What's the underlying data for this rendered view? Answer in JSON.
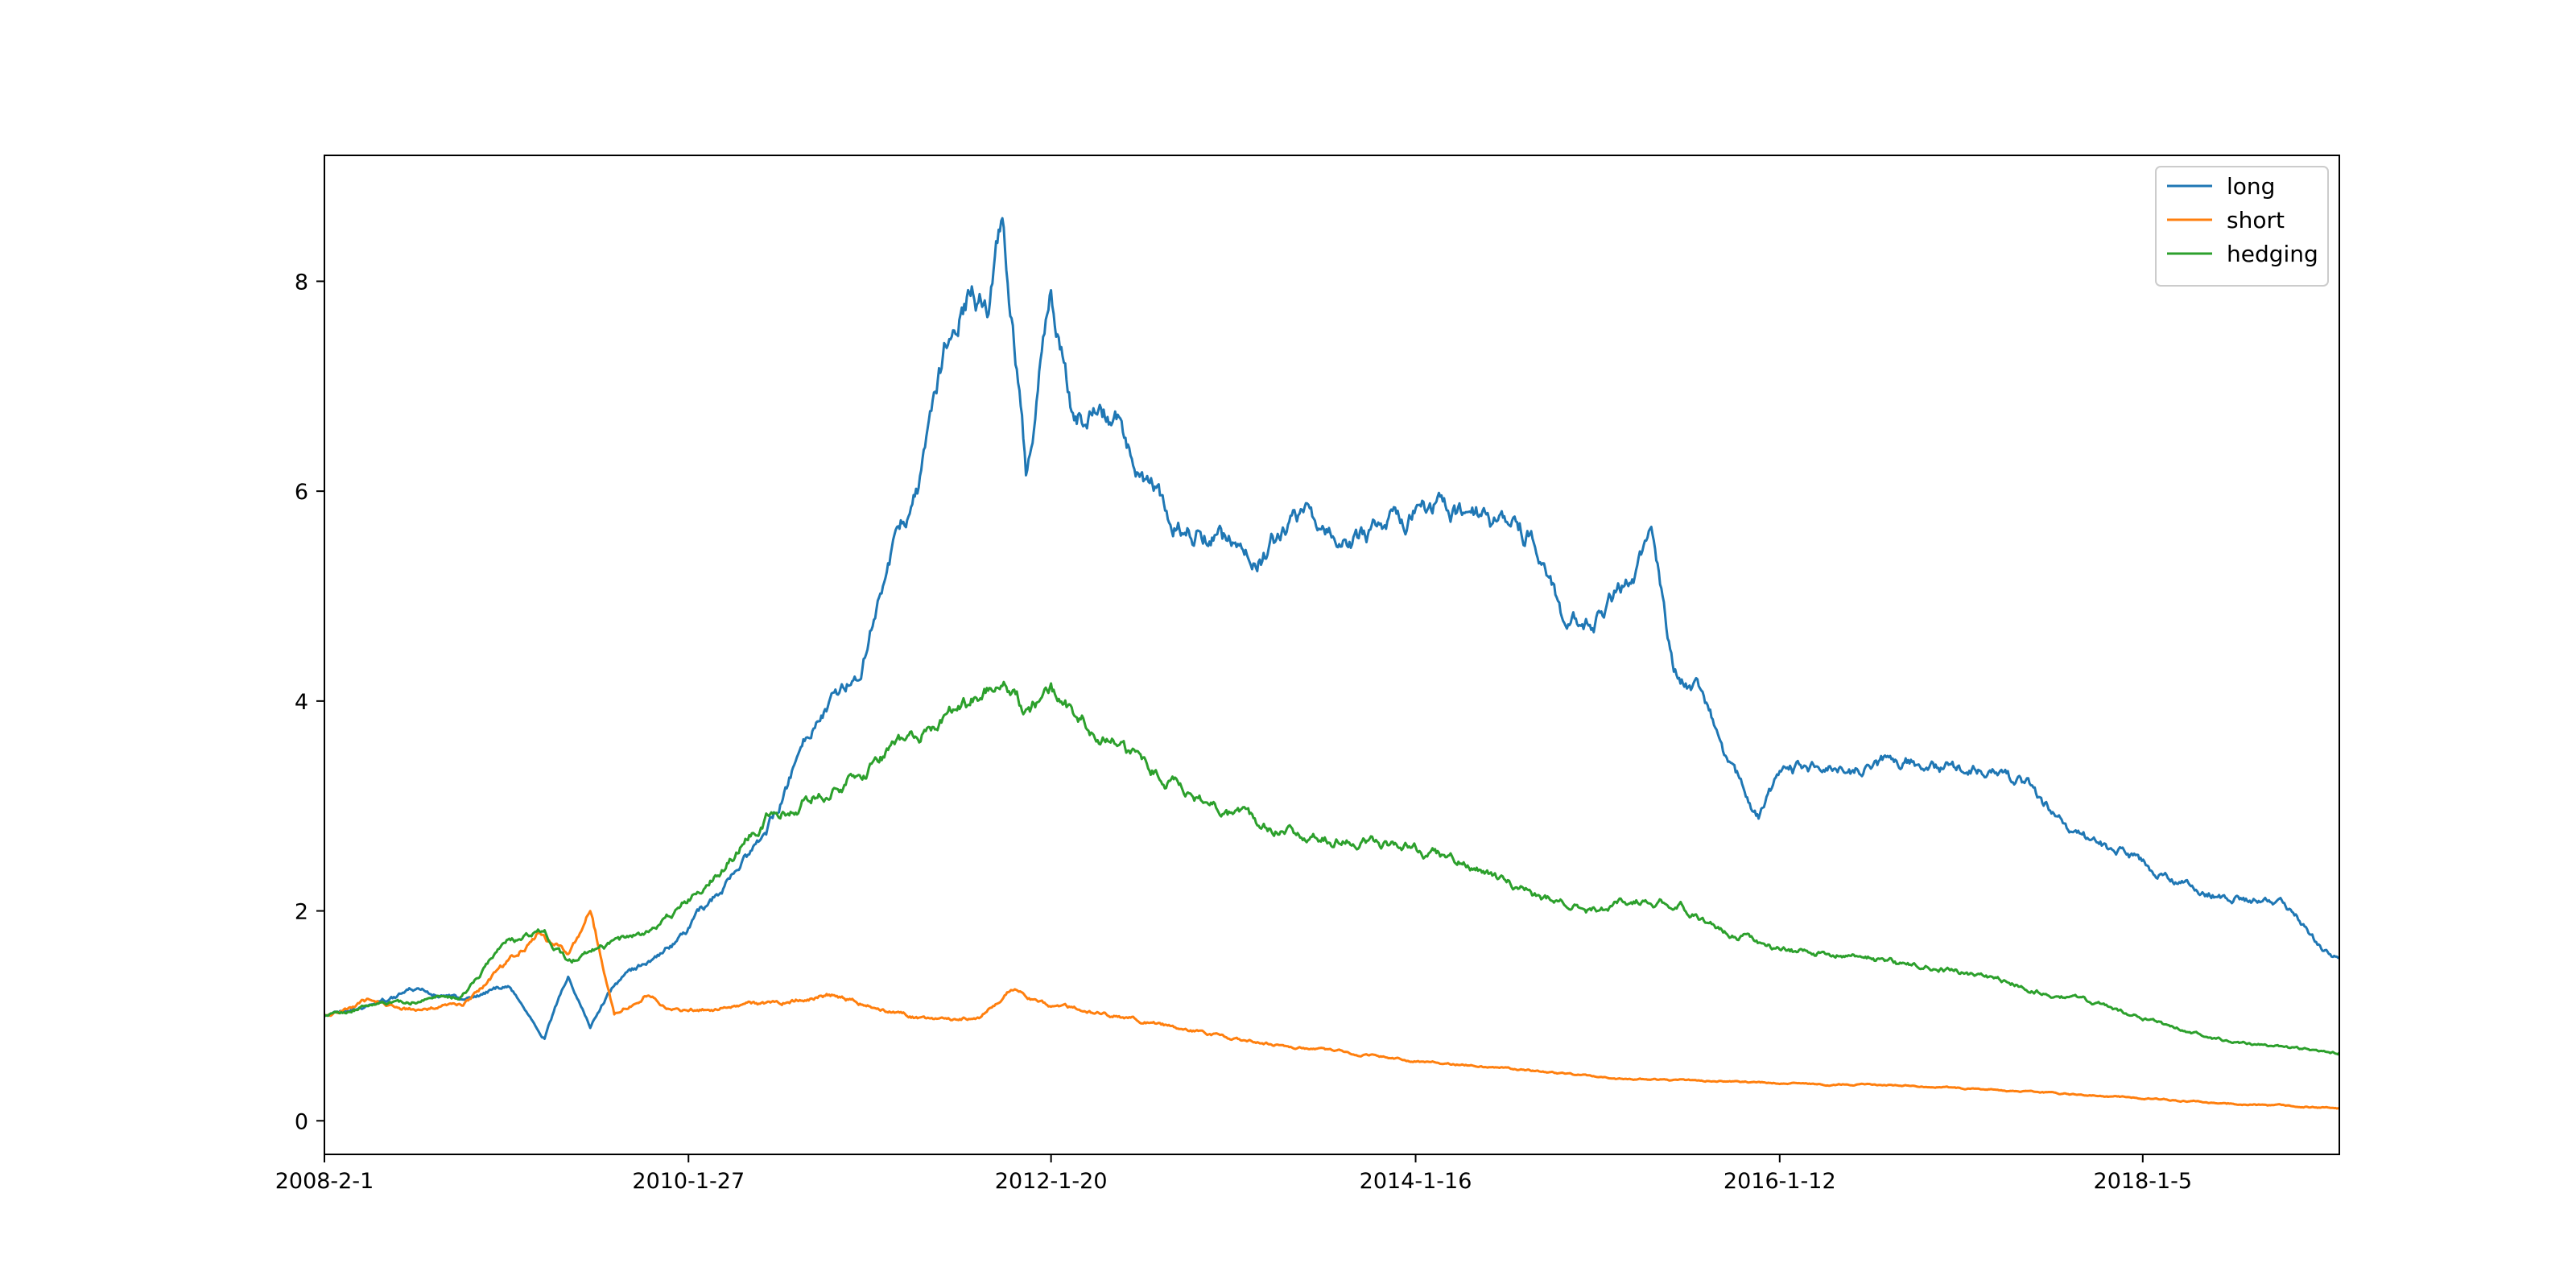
{
  "chart_data": {
    "type": "line",
    "title": "",
    "xlabel": "",
    "ylabel": "",
    "x_ticks": [
      "2008-2-1",
      "2010-1-27",
      "2012-1-20",
      "2014-1-16",
      "2016-1-12",
      "2018-1-5"
    ],
    "y_ticks": [
      "0",
      "2",
      "4",
      "6",
      "8"
    ],
    "xlim": [
      "2008-2-1",
      "2019-2-1"
    ],
    "ylim": [
      -0.32,
      9.2
    ],
    "grid": false,
    "legend": "top-right",
    "series": [
      {
        "name": "long",
        "color": "#1f77b4",
        "x": [
          "2008-2-1",
          "2008-5-1",
          "2008-8-1",
          "2008-11-1",
          "2009-2-1",
          "2009-4-15",
          "2009-6-1",
          "2009-7-15",
          "2009-9-1",
          "2009-11-1",
          "2010-1-1",
          "2010-4-1",
          "2010-7-1",
          "2010-10-1",
          "2011-1-1",
          "2011-3-1",
          "2011-5-1",
          "2011-7-1",
          "2011-8-15",
          "2011-9-15",
          "2011-10-15",
          "2011-12-1",
          "2012-1-20",
          "2012-3-1",
          "2012-6-1",
          "2012-9-1",
          "2012-12-1",
          "2013-3-1",
          "2013-6-1",
          "2013-9-1",
          "2013-12-1",
          "2014-3-1",
          "2014-6-1",
          "2014-9-1",
          "2014-11-1",
          "2015-1-1",
          "2015-3-1",
          "2015-5-1",
          "2015-6-15",
          "2015-8-1",
          "2015-10-1",
          "2015-12-1",
          "2016-1-12",
          "2016-3-1",
          "2016-6-1",
          "2016-9-1",
          "2016-12-1",
          "2017-3-1",
          "2017-6-1",
          "2017-9-1",
          "2017-12-1",
          "2018-3-1",
          "2018-6-1",
          "2018-9-1",
          "2018-11-1",
          "2019-1-1",
          "2019-2-1"
        ],
        "values": [
          1.0,
          1.1,
          1.25,
          1.15,
          1.3,
          0.8,
          1.4,
          0.9,
          1.3,
          1.5,
          1.7,
          2.2,
          2.7,
          3.8,
          4.3,
          5.3,
          6.0,
          7.5,
          8.0,
          7.7,
          8.7,
          6.2,
          7.9,
          6.8,
          6.6,
          5.8,
          5.6,
          5.3,
          5.8,
          5.5,
          5.7,
          5.9,
          5.7,
          5.6,
          4.8,
          4.7,
          5.1,
          5.5,
          4.3,
          4.1,
          3.4,
          2.9,
          3.3,
          3.35,
          3.3,
          3.45,
          3.35,
          3.3,
          3.15,
          2.7,
          2.55,
          2.3,
          2.15,
          2.1,
          2.0,
          1.6,
          1.55
        ]
      },
      {
        "name": "short",
        "color": "#ff7f0e",
        "x": [
          "2008-2-1",
          "2008-5-1",
          "2008-8-1",
          "2008-11-1",
          "2009-2-1",
          "2009-4-1",
          "2009-6-1",
          "2009-7-15",
          "2009-9-1",
          "2009-11-1",
          "2010-1-1",
          "2010-6-1",
          "2010-11-1",
          "2011-3-1",
          "2011-6-1",
          "2011-9-1",
          "2011-11-1",
          "2012-1-20",
          "2012-6-1",
          "2012-11-1",
          "2013-3-1",
          "2013-9-1",
          "2014-3-1",
          "2014-9-1",
          "2015-3-1",
          "2015-9-1",
          "2016-3-1",
          "2016-9-1",
          "2017-3-1",
          "2017-9-1",
          "2018-3-1",
          "2018-9-1",
          "2019-2-1"
        ],
        "values": [
          1.0,
          1.15,
          1.05,
          1.1,
          1.5,
          1.8,
          1.6,
          2.0,
          1.0,
          1.2,
          1.05,
          1.1,
          1.2,
          1.05,
          0.95,
          1.0,
          1.25,
          1.1,
          1.0,
          0.85,
          0.75,
          0.65,
          0.55,
          0.48,
          0.4,
          0.38,
          0.35,
          0.34,
          0.3,
          0.25,
          0.2,
          0.15,
          0.12
        ]
      },
      {
        "name": "hedging",
        "color": "#2ca02c",
        "x": [
          "2008-2-1",
          "2008-5-1",
          "2008-8-1",
          "2008-11-1",
          "2009-2-1",
          "2009-4-15",
          "2009-6-1",
          "2009-9-1",
          "2009-11-1",
          "2010-1-1",
          "2010-4-1",
          "2010-7-1",
          "2010-10-1",
          "2011-1-1",
          "2011-4-1",
          "2011-7-1",
          "2011-10-15",
          "2011-12-1",
          "2012-1-20",
          "2012-4-1",
          "2012-7-1",
          "2012-10-1",
          "2013-1-1",
          "2013-4-1",
          "2013-7-1",
          "2013-10-1",
          "2014-1-16",
          "2014-4-1",
          "2014-7-1",
          "2014-10-1",
          "2015-1-1",
          "2015-4-1",
          "2015-7-1",
          "2015-9-1",
          "2015-11-1",
          "2016-1-12",
          "2016-4-1",
          "2016-7-1",
          "2016-10-1",
          "2017-1-1",
          "2017-4-1",
          "2017-7-1",
          "2017-10-1",
          "2018-1-5",
          "2018-4-1",
          "2018-7-1",
          "2018-10-1",
          "2019-2-1"
        ],
        "values": [
          1.0,
          1.1,
          1.15,
          1.2,
          1.7,
          1.8,
          1.5,
          1.7,
          1.8,
          2.0,
          2.4,
          2.9,
          3.1,
          3.3,
          3.6,
          3.85,
          4.2,
          3.9,
          4.05,
          3.8,
          3.5,
          3.2,
          2.9,
          2.8,
          2.7,
          2.65,
          2.6,
          2.5,
          2.3,
          2.1,
          2.0,
          2.1,
          2.05,
          1.85,
          1.75,
          1.62,
          1.6,
          1.55,
          1.48,
          1.42,
          1.32,
          1.22,
          1.12,
          0.98,
          0.85,
          0.75,
          0.7,
          0.65
        ]
      }
    ]
  }
}
